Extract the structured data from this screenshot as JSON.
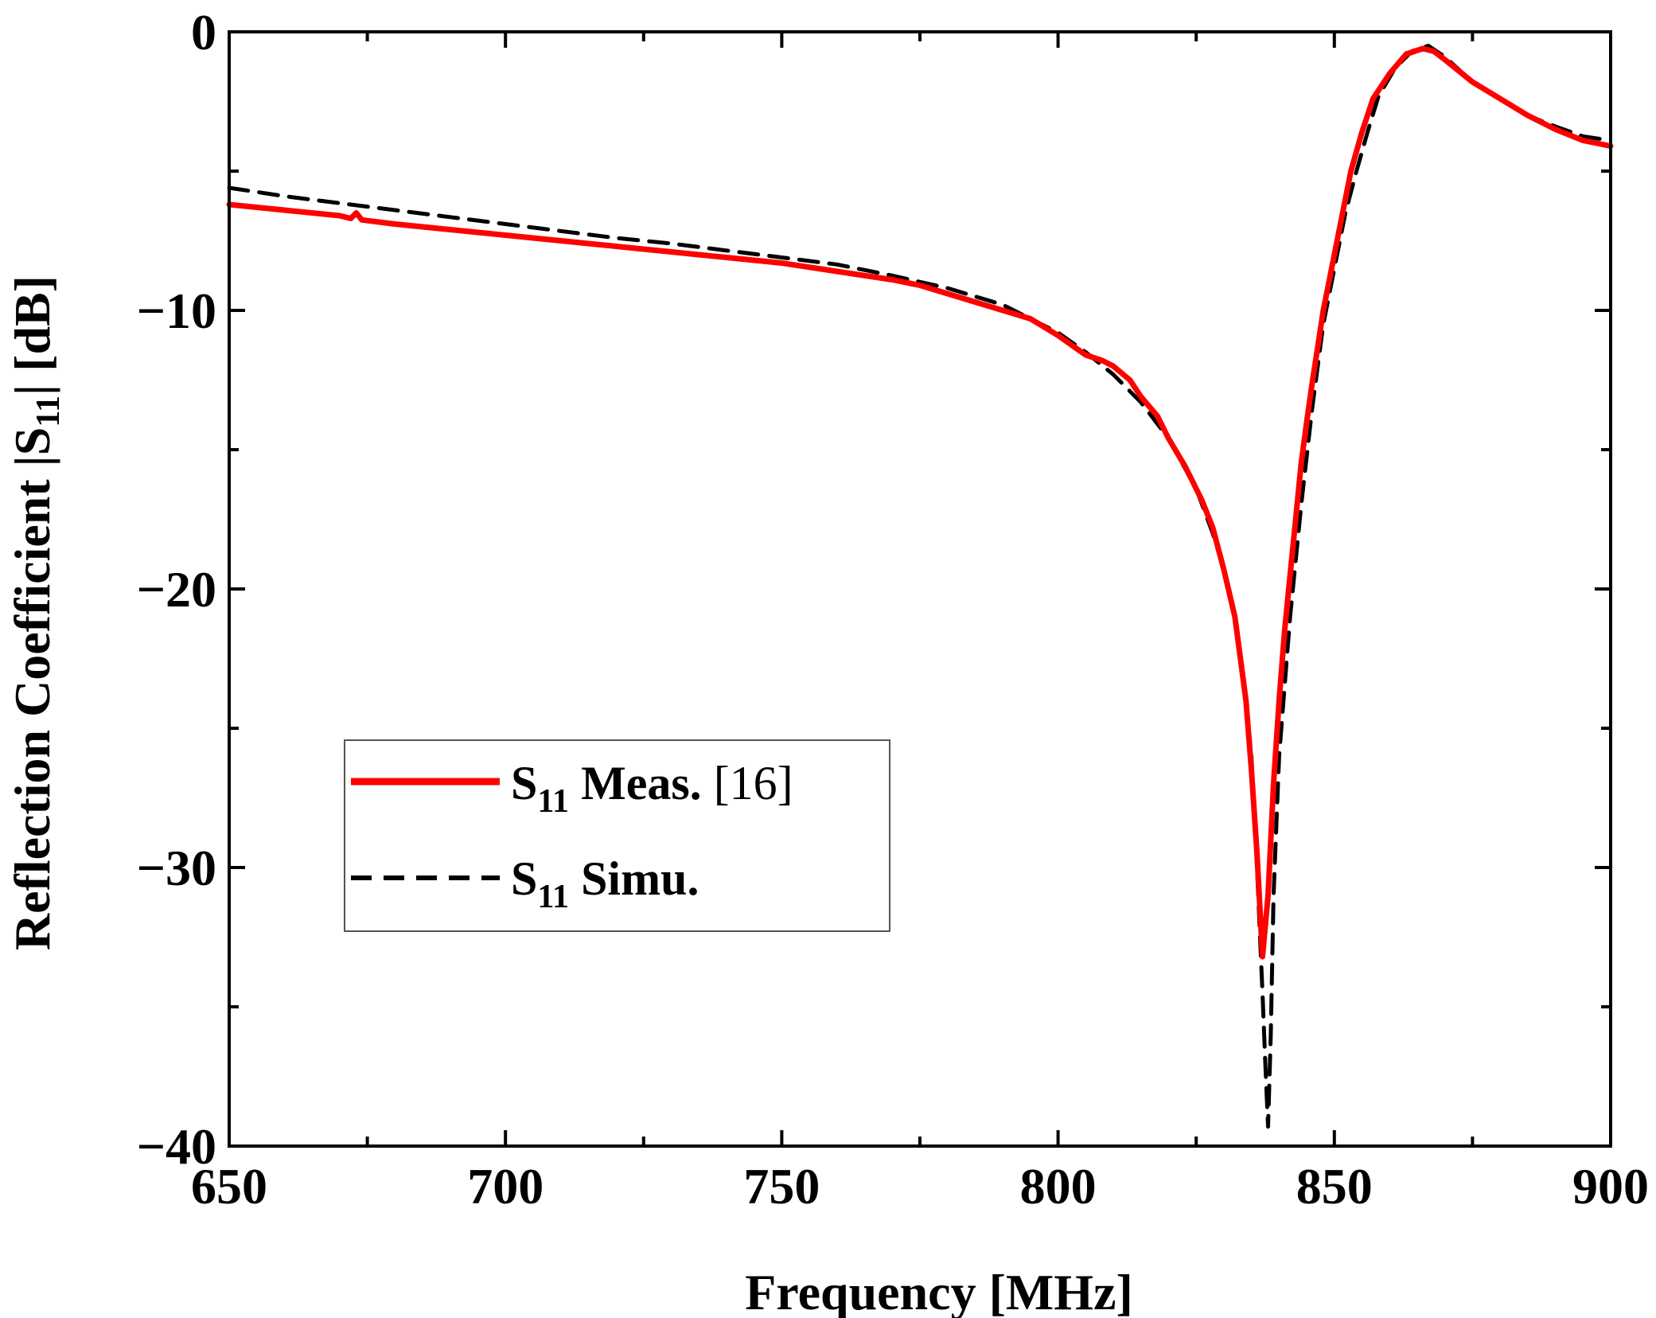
{
  "chart_data": {
    "type": "line",
    "title": "",
    "xlabel": "Frequency [MHz]",
    "ylabel": {
      "prefix": "Reflection Coefficient |S",
      "subscript": "11",
      "suffix": "| [dB]"
    },
    "xlim": [
      650,
      900
    ],
    "ylim": [
      -40,
      0
    ],
    "x_ticks": [
      650,
      700,
      750,
      800,
      850,
      900
    ],
    "x_tick_labels": [
      "650",
      "700",
      "750",
      "800",
      "850",
      "900"
    ],
    "y_ticks": [
      0,
      -10,
      -20,
      -30,
      -40
    ],
    "y_tick_labels": [
      "0",
      "−10",
      "−20",
      "−30",
      "−40"
    ],
    "grid": false,
    "legend_position": "bottom-left",
    "series": [
      {
        "name": "S11 Meas. [16]",
        "legend": {
          "main": "S",
          "sub": "11",
          "bold": " Meas. ",
          "normal": "[16]"
        },
        "color": "#ff0000",
        "style": "solid",
        "points": [
          [
            650,
            -6.2
          ],
          [
            660,
            -6.4
          ],
          [
            670,
            -6.6
          ],
          [
            672,
            -6.7
          ],
          [
            673,
            -6.5
          ],
          [
            674,
            -6.75
          ],
          [
            680,
            -6.9
          ],
          [
            690,
            -7.1
          ],
          [
            700,
            -7.3
          ],
          [
            710,
            -7.5
          ],
          [
            720,
            -7.7
          ],
          [
            730,
            -7.9
          ],
          [
            740,
            -8.1
          ],
          [
            750,
            -8.3
          ],
          [
            760,
            -8.6
          ],
          [
            770,
            -8.9
          ],
          [
            775,
            -9.1
          ],
          [
            780,
            -9.4
          ],
          [
            785,
            -9.7
          ],
          [
            790,
            -10.0
          ],
          [
            795,
            -10.3
          ],
          [
            800,
            -10.9
          ],
          [
            805,
            -11.6
          ],
          [
            808,
            -11.8
          ],
          [
            810,
            -12.0
          ],
          [
            813,
            -12.5
          ],
          [
            815,
            -13.1
          ],
          [
            818,
            -13.8
          ],
          [
            820,
            -14.6
          ],
          [
            823,
            -15.6
          ],
          [
            826,
            -16.8
          ],
          [
            828,
            -17.8
          ],
          [
            830,
            -19.3
          ],
          [
            832,
            -21.0
          ],
          [
            833,
            -22.5
          ],
          [
            834,
            -24.0
          ],
          [
            835,
            -26.5
          ],
          [
            836,
            -29.5
          ],
          [
            837,
            -33.2
          ],
          [
            838,
            -31.0
          ],
          [
            839,
            -27.0
          ],
          [
            840,
            -24.0
          ],
          [
            841,
            -21.5
          ],
          [
            842,
            -19.5
          ],
          [
            843,
            -17.5
          ],
          [
            844,
            -15.5
          ],
          [
            845,
            -14.0
          ],
          [
            846,
            -12.6
          ],
          [
            847,
            -11.3
          ],
          [
            848,
            -10.0
          ],
          [
            849,
            -9.0
          ],
          [
            850,
            -8.0
          ],
          [
            851,
            -7.0
          ],
          [
            852,
            -6.0
          ],
          [
            853,
            -5.0
          ],
          [
            855,
            -3.6
          ],
          [
            857,
            -2.4
          ],
          [
            860,
            -1.5
          ],
          [
            863,
            -0.8
          ],
          [
            866,
            -0.6
          ],
          [
            868,
            -0.7
          ],
          [
            870,
            -1.0
          ],
          [
            875,
            -1.8
          ],
          [
            880,
            -2.4
          ],
          [
            885,
            -3.0
          ],
          [
            890,
            -3.5
          ],
          [
            895,
            -3.9
          ],
          [
            900,
            -4.1
          ]
        ]
      },
      {
        "name": "S11 Simu.",
        "legend": {
          "main": "S",
          "sub": "11",
          "bold": " Simu.",
          "normal": ""
        },
        "color": "#000000",
        "style": "dashed",
        "points": [
          [
            650,
            -5.6
          ],
          [
            660,
            -5.9
          ],
          [
            670,
            -6.15
          ],
          [
            680,
            -6.4
          ],
          [
            690,
            -6.65
          ],
          [
            700,
            -6.9
          ],
          [
            710,
            -7.15
          ],
          [
            720,
            -7.4
          ],
          [
            730,
            -7.6
          ],
          [
            740,
            -7.85
          ],
          [
            750,
            -8.1
          ],
          [
            760,
            -8.35
          ],
          [
            770,
            -8.75
          ],
          [
            780,
            -9.2
          ],
          [
            790,
            -9.8
          ],
          [
            800,
            -10.8
          ],
          [
            805,
            -11.5
          ],
          [
            810,
            -12.3
          ],
          [
            815,
            -13.3
          ],
          [
            820,
            -14.6
          ],
          [
            825,
            -16.4
          ],
          [
            828,
            -18.0
          ],
          [
            830,
            -19.3
          ],
          [
            832,
            -21.0
          ],
          [
            834,
            -24.0
          ],
          [
            835,
            -26.0
          ],
          [
            836,
            -30.0
          ],
          [
            837,
            -34.5
          ],
          [
            837.5,
            -37.0
          ],
          [
            838,
            -39.3
          ],
          [
            838.5,
            -36.0
          ],
          [
            839,
            -31.0
          ],
          [
            840,
            -26.0
          ],
          [
            842,
            -21.0
          ],
          [
            844,
            -17.0
          ],
          [
            846,
            -13.5
          ],
          [
            848,
            -10.5
          ],
          [
            850,
            -8.5
          ],
          [
            852,
            -6.5
          ],
          [
            854,
            -5.0
          ],
          [
            856,
            -3.6
          ],
          [
            858,
            -2.3
          ],
          [
            861,
            -1.3
          ],
          [
            864,
            -0.7
          ],
          [
            867,
            -0.5
          ],
          [
            870,
            -0.9
          ],
          [
            875,
            -1.8
          ],
          [
            880,
            -2.4
          ],
          [
            885,
            -3.0
          ],
          [
            890,
            -3.4
          ],
          [
            895,
            -3.75
          ],
          [
            900,
            -3.9
          ]
        ]
      }
    ]
  }
}
